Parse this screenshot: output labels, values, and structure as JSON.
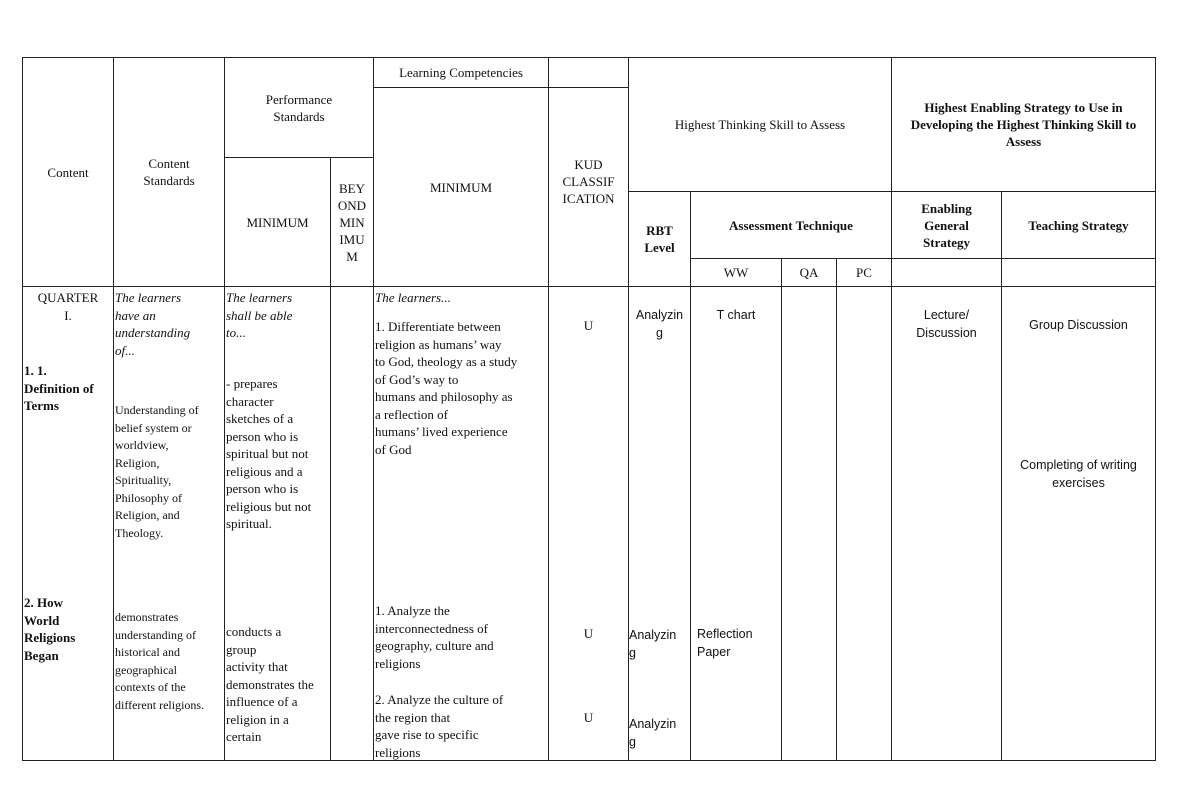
{
  "headers": {
    "content": "Content",
    "content_standards": "Content\nStandards",
    "performance_standards": "Performance\nStandards",
    "ps_minimum": "MINIMUM",
    "ps_beyond_minimum": "BEY\nOND\nMIN\nIMU\nM",
    "learning_competencies": "Learning Competencies",
    "lc_minimum": "MINIMUM",
    "kud_classification": "KUD\nCLASSIF\nICATION",
    "highest_thinking_skill": "Highest Thinking Skill to Assess",
    "highest_enabling_strategy": "Highest Enabling Strategy to Use in Developing the Highest Thinking Skill to Assess",
    "rbt_level": "RBT\nLevel",
    "assessment_technique": "Assessment Technique",
    "ww": "WW",
    "qa": "QA",
    "pc": "PC",
    "enabling_general_strategy": "Enabling\nGeneral\nStrategy",
    "teaching_strategy": "Teaching Strategy"
  },
  "rows": [
    {
      "quarter": "QUARTER\nI.",
      "content": "1. 1.\nDefinition of\nTerms",
      "cs_intro": "The learners\nhave an\nunderstanding\nof...",
      "content_standard": "Understanding of\nbelief system or\nworldview,\nReligion,\nSpirituality,\nPhilosophy of\nReligion, and\nTheology.",
      "ps_intro": "The learners\nshall be able\nto...",
      "performance_standard": "- prepares\ncharacter\nsketches of a\nperson who is\nspiritual but not\nreligious and a\nperson who is\nreligious but not\nspiritual.",
      "lc_intro": "The learners...",
      "competency": "1. Differentiate between\nreligion as humans’ way\nto God, theology as a study\nof God’s way to\nhumans and philosophy as\na reflection of\nhumans’ lived experience\nof God",
      "kud": "U",
      "rbt": "Analyzin\ng",
      "ww": "T chart",
      "enabling_strategy": "Lecture/\nDiscussion",
      "teaching_strategies": [
        "Group Discussion",
        "Completing of writing\nexercises"
      ]
    },
    {
      "content": "2. How\nWorld\nReligions\nBegan",
      "content_standard": "demonstrates\nunderstanding of\nhistorical and\ngeographical\ncontexts of the\ndifferent religions.",
      "performance_standard": "conducts a\ngroup\nactivity that\ndemonstrates the\ninfluence of a\nreligion in a\ncertain",
      "competencies": [
        "1. Analyze the\ninterconnectedness of\ngeography, culture and\nreligions",
        "2. Analyze the culture of\nthe region that\ngave rise to specific\nreligions"
      ],
      "kud": [
        "U",
        "U"
      ],
      "rbt": [
        "Analyzin\ng",
        "Analyzin\ng"
      ],
      "ww": "Reflection\nPaper"
    }
  ]
}
